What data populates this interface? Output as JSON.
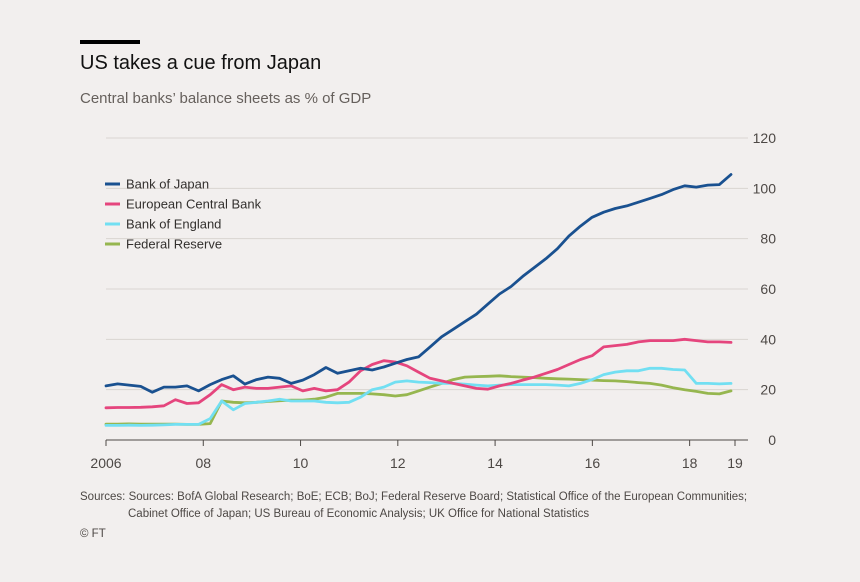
{
  "header": {
    "title": "US takes a cue from Japan",
    "subtitle": "Central banks’ balance sheets as % of GDP"
  },
  "footer": {
    "source_line1": "Sources: Sources: BofA Global Research; BoE; ECB; BoJ; Federal Reserve Board; Statistical Office of the European Communities;",
    "source_line2": "Cabinet Office of Japan; US Bureau of Economic Analysis; UK Office for National Statistics",
    "copyright": "© FT"
  },
  "chart_data": {
    "type": "line",
    "title": "US takes a cue from Japan",
    "subtitle": "Central banks’ balance sheets as % of GDP",
    "xlabel": "",
    "ylabel": "",
    "xlim": [
      2006,
      2019.2
    ],
    "ylim": [
      0,
      120
    ],
    "x_ticks": [
      2006,
      2008,
      2010,
      2012,
      2014,
      2016,
      2018,
      2019
    ],
    "x_tick_labels": [
      "2006",
      "08",
      "10",
      "12",
      "14",
      "16",
      "18",
      "19"
    ],
    "y_ticks": [
      0,
      20,
      40,
      60,
      80,
      100,
      120
    ],
    "y_tick_labels": [
      "0",
      "20",
      "40",
      "60",
      "80",
      "100",
      "120"
    ],
    "grid": true,
    "legend_position": "top-left",
    "series": [
      {
        "name": "Bank of Japan",
        "color": "#1a5190",
        "x": [
          2006,
          2006.25,
          2006.5,
          2006.75,
          2007,
          2007.25,
          2007.5,
          2007.75,
          2008,
          2008.25,
          2008.5,
          2008.75,
          2009,
          2009.25,
          2009.5,
          2009.75,
          2010,
          2010.25,
          2010.5,
          2010.75,
          2011,
          2011.25,
          2011.5,
          2011.75,
          2012,
          2012.25,
          2012.5,
          2012.75,
          2013,
          2013.25,
          2013.5,
          2013.75,
          2014,
          2014.25,
          2014.5,
          2014.75,
          2015,
          2015.25,
          2015.5,
          2015.75,
          2016,
          2016.25,
          2016.5,
          2016.75,
          2017,
          2017.25,
          2017.5,
          2017.75,
          2018,
          2018.25,
          2018.5,
          2018.75,
          2019,
          2019.25,
          2019.5
        ],
        "values": [
          21.5,
          22.3,
          21.8,
          21.3,
          19,
          21,
          21,
          21.5,
          19.5,
          22,
          24,
          25.5,
          22.2,
          24,
          25,
          24.5,
          22.5,
          23.8,
          26,
          28.8,
          26.5,
          27.5,
          28.5,
          27.8,
          29,
          30.5,
          32,
          33,
          37,
          41,
          44,
          47,
          50,
          54,
          58,
          61,
          65,
          68.5,
          72,
          76,
          81,
          85,
          88.5,
          90.5,
          92,
          93,
          94.5,
          96,
          97.5,
          99.5,
          101,
          100.5,
          101.3,
          101.5,
          105.5
        ]
      },
      {
        "name": "European Central Bank",
        "color": "#e5457d",
        "x": [
          2006,
          2006.25,
          2006.5,
          2006.75,
          2007,
          2007.25,
          2007.5,
          2007.75,
          2008,
          2008.25,
          2008.5,
          2008.75,
          2009,
          2009.25,
          2009.5,
          2009.75,
          2010,
          2010.25,
          2010.5,
          2010.75,
          2011,
          2011.25,
          2011.5,
          2011.75,
          2012,
          2012.25,
          2012.5,
          2012.75,
          2013,
          2013.25,
          2013.5,
          2013.75,
          2014,
          2014.25,
          2014.5,
          2014.75,
          2015,
          2015.25,
          2015.5,
          2015.75,
          2016,
          2016.25,
          2016.5,
          2016.75,
          2017,
          2017.25,
          2017.5,
          2017.75,
          2018,
          2018.25,
          2018.5,
          2018.75,
          2019,
          2019.25,
          2019.5
        ],
        "values": [
          12.8,
          12.9,
          12.9,
          13,
          13.2,
          13.6,
          16,
          14.5,
          14.8,
          18,
          22,
          20,
          21,
          20.5,
          20.5,
          21,
          21.5,
          19.5,
          20.5,
          19.5,
          20,
          23,
          27.5,
          30,
          31.5,
          31,
          29.5,
          27,
          24.5,
          23.5,
          22.5,
          21.5,
          20.5,
          20.2,
          21.5,
          22.5,
          23.8,
          25,
          26.5,
          28,
          30,
          32,
          33.5,
          37,
          37.5,
          38,
          39,
          39.5,
          39.5,
          39.5,
          40,
          39.5,
          39,
          39,
          38.8
        ]
      },
      {
        "name": "Bank of England",
        "color": "#72dff2",
        "x": [
          2006,
          2006.25,
          2006.5,
          2006.75,
          2007,
          2007.25,
          2007.5,
          2007.75,
          2008,
          2008.25,
          2008.5,
          2008.75,
          2009,
          2009.25,
          2009.5,
          2009.75,
          2010,
          2010.25,
          2010.5,
          2010.75,
          2011,
          2011.25,
          2011.5,
          2011.75,
          2012,
          2012.25,
          2012.5,
          2012.75,
          2013,
          2013.25,
          2013.5,
          2013.75,
          2014,
          2014.25,
          2014.5,
          2014.75,
          2015,
          2015.25,
          2015.5,
          2015.75,
          2016,
          2016.25,
          2016.5,
          2016.75,
          2017,
          2017.25,
          2017.5,
          2017.75,
          2018,
          2018.25,
          2018.5,
          2018.75,
          2019,
          2019.25,
          2019.5
        ],
        "values": [
          5.8,
          5.8,
          5.9,
          5.8,
          5.9,
          6,
          6.2,
          6.2,
          6.2,
          8.5,
          15.5,
          12,
          14.5,
          15,
          15.5,
          16.2,
          15.5,
          15.5,
          15.5,
          15,
          14.8,
          15,
          17,
          20,
          21,
          23,
          23.5,
          23,
          22.8,
          22.5,
          22.5,
          22.2,
          21.8,
          21.5,
          21.8,
          22,
          22,
          22,
          22,
          21.8,
          21.5,
          22.5,
          24,
          26,
          27,
          27.5,
          27.5,
          28.5,
          28.5,
          28,
          27.8,
          22.5,
          22.5,
          22.3,
          22.5
        ]
      },
      {
        "name": "Federal Reserve",
        "color": "#96b64f",
        "x": [
          2006,
          2006.25,
          2006.5,
          2006.75,
          2007,
          2007.25,
          2007.5,
          2007.75,
          2008,
          2008.25,
          2008.5,
          2008.75,
          2009,
          2009.25,
          2009.5,
          2009.75,
          2010,
          2010.25,
          2010.5,
          2010.75,
          2011,
          2011.25,
          2011.5,
          2011.75,
          2012,
          2012.25,
          2012.5,
          2012.75,
          2013,
          2013.25,
          2013.5,
          2013.75,
          2014,
          2014.25,
          2014.5,
          2014.75,
          2015,
          2015.25,
          2015.5,
          2015.75,
          2016,
          2016.25,
          2016.5,
          2016.75,
          2017,
          2017.25,
          2017.5,
          2017.75,
          2018,
          2018.25,
          2018.5,
          2018.75,
          2019,
          2019.25,
          2019.5
        ],
        "values": [
          6.3,
          6.3,
          6.4,
          6.3,
          6.3,
          6.3,
          6.3,
          6.2,
          6.2,
          6.5,
          15.5,
          15,
          14.8,
          15,
          15.3,
          15.6,
          15.8,
          15.8,
          16.2,
          17,
          18.5,
          18.5,
          18.5,
          18.3,
          18,
          17.5,
          18,
          19.5,
          21,
          22.5,
          24,
          25,
          25.2,
          25.3,
          25.5,
          25.2,
          25,
          24.8,
          24.5,
          24.3,
          24.2,
          24,
          23.8,
          23.6,
          23.5,
          23.2,
          22.8,
          22.5,
          21.8,
          20.8,
          20,
          19.3,
          18.5,
          18.3,
          19.5
        ]
      }
    ]
  }
}
